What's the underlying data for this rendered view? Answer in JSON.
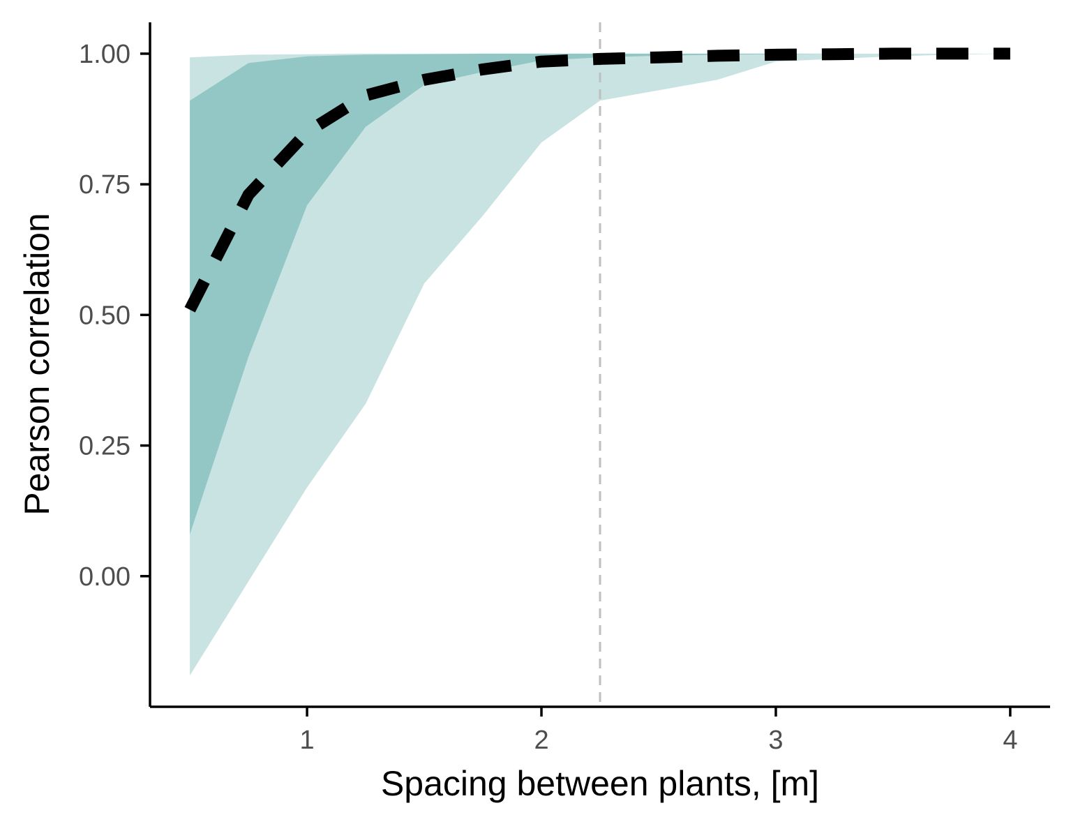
{
  "chart_data": {
    "type": "area",
    "title": "",
    "xlabel": "Spacing between plants, [m]",
    "ylabel": "Pearson correlation",
    "xlim": [
      0.33,
      4.17
    ],
    "ylim": [
      -0.25,
      1.06
    ],
    "x_ticks": [
      1,
      2,
      3,
      4
    ],
    "x_tick_labels": [
      "1",
      "2",
      "3",
      "4"
    ],
    "y_ticks": [
      0,
      0.25,
      0.5,
      0.75,
      1
    ],
    "y_tick_labels": [
      "0.00",
      "0.25",
      "0.50",
      "0.75",
      "1.00"
    ],
    "grid": false,
    "legend": "none",
    "x": [
      0.5,
      0.75,
      1.0,
      1.25,
      1.5,
      1.75,
      2.0,
      2.25,
      2.5,
      2.75,
      3.0,
      3.25,
      3.5,
      3.75,
      4.0
    ],
    "outer_band": {
      "lower": [
        -0.19,
        -0.01,
        0.17,
        0.33,
        0.56,
        0.69,
        0.83,
        0.91,
        0.93,
        0.95,
        0.985,
        0.99,
        0.995,
        0.998,
        1.0
      ],
      "upper": [
        0.993,
        0.998,
        0.999,
        1.0,
        1.0,
        1.0,
        1.0,
        1.0,
        1.0,
        1.0,
        1.0,
        1.0,
        1.0,
        1.0,
        1.0
      ]
    },
    "inner_band": {
      "lower": [
        0.08,
        0.42,
        0.71,
        0.86,
        0.94,
        0.965,
        0.987,
        0.993,
        0.996,
        0.998,
        0.999,
        1.0,
        1.0,
        1.0,
        1.0
      ],
      "upper": [
        0.91,
        0.982,
        0.995,
        0.998,
        0.999,
        1.0,
        1.0,
        1.0,
        1.0,
        1.0,
        1.0,
        1.0,
        1.0,
        1.0,
        1.0
      ]
    },
    "median": [
      0.51,
      0.73,
      0.85,
      0.92,
      0.95,
      0.97,
      0.985,
      0.99,
      0.993,
      0.996,
      0.998,
      0.999,
      1.0,
      1.0,
      1.0
    ],
    "reference_line_x": 2.25,
    "colors": {
      "outer_band": "#c8e3e2",
      "inner_band": "#92c7c5",
      "median": "#000000",
      "reference_line": "#bfbfbf",
      "axis": "#000000"
    }
  }
}
